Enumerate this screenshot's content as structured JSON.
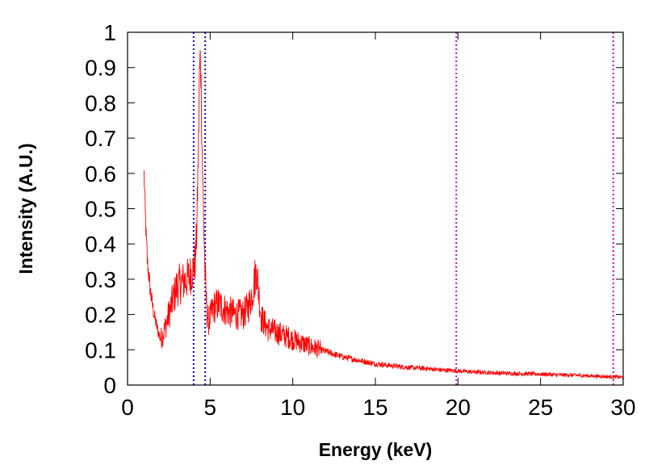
{
  "chart_data": {
    "type": "line",
    "title": "",
    "xlabel": "Energy (keV)",
    "ylabel": "Intensity (A.U.)",
    "xlim": [
      0,
      30
    ],
    "ylim": [
      0,
      1
    ],
    "grid": false,
    "legend": "none",
    "x_ticks": [
      {
        "value": 0,
        "label": "0"
      },
      {
        "value": 5,
        "label": "5"
      },
      {
        "value": 10,
        "label": "10"
      },
      {
        "value": 15,
        "label": "15"
      },
      {
        "value": 20,
        "label": "20"
      },
      {
        "value": 25,
        "label": "25"
      },
      {
        "value": 30,
        "label": "30"
      }
    ],
    "y_ticks": [
      {
        "value": 0,
        "label": "0"
      },
      {
        "value": 0.1,
        "label": "0.1"
      },
      {
        "value": 0.2,
        "label": "0.2"
      },
      {
        "value": 0.3,
        "label": "0.3"
      },
      {
        "value": 0.4,
        "label": "0.4"
      },
      {
        "value": 0.5,
        "label": "0.5"
      },
      {
        "value": 0.6,
        "label": "0.6"
      },
      {
        "value": 0.7,
        "label": "0.7"
      },
      {
        "value": 0.8,
        "label": "0.8"
      },
      {
        "value": 0.9,
        "label": "0.9"
      },
      {
        "value": 1,
        "label": "1"
      }
    ],
    "series": [
      {
        "color": "#ff0000",
        "x": [
          1.0,
          1.1,
          1.2,
          1.4,
          1.6,
          1.8,
          2.0,
          2.2,
          2.5,
          2.8,
          3.0,
          3.3,
          3.6,
          3.9,
          4.1,
          4.2,
          4.3,
          4.35,
          4.4,
          4.45,
          4.5,
          4.6,
          4.7,
          4.8,
          4.9,
          5.0,
          5.2,
          5.5,
          6.0,
          6.5,
          7.0,
          7.3,
          7.5,
          7.7,
          7.8,
          7.9,
          8.1,
          8.5,
          9.0,
          9.5,
          10.0,
          11.0,
          12.0,
          13.0,
          14.0,
          15.0,
          16.0,
          17.0,
          18.0,
          19.0,
          20.0,
          21.0,
          22.0,
          23.0,
          24.0,
          25.0,
          26.0,
          27.0,
          28.0,
          29.0,
          30.0
        ],
        "y": [
          0.6,
          0.45,
          0.35,
          0.26,
          0.2,
          0.16,
          0.13,
          0.15,
          0.2,
          0.25,
          0.28,
          0.29,
          0.3,
          0.32,
          0.35,
          0.45,
          0.7,
          0.88,
          0.93,
          0.87,
          0.7,
          0.48,
          0.3,
          0.21,
          0.18,
          0.19,
          0.22,
          0.23,
          0.21,
          0.2,
          0.2,
          0.22,
          0.25,
          0.3,
          0.33,
          0.28,
          0.19,
          0.16,
          0.15,
          0.14,
          0.13,
          0.11,
          0.095,
          0.08,
          0.07,
          0.06,
          0.055,
          0.05,
          0.047,
          0.043,
          0.04,
          0.037,
          0.035,
          0.033,
          0.032,
          0.031,
          0.029,
          0.028,
          0.026,
          0.024,
          0.022
        ],
        "noise": 0.06
      }
    ],
    "vertical_lines": [
      {
        "x": 4.0,
        "color": "#0000cc"
      },
      {
        "x": 4.7,
        "color": "#0000cc"
      },
      {
        "x": 19.9,
        "color": "#cc00cc"
      },
      {
        "x": 29.4,
        "color": "#cc00cc"
      }
    ]
  }
}
